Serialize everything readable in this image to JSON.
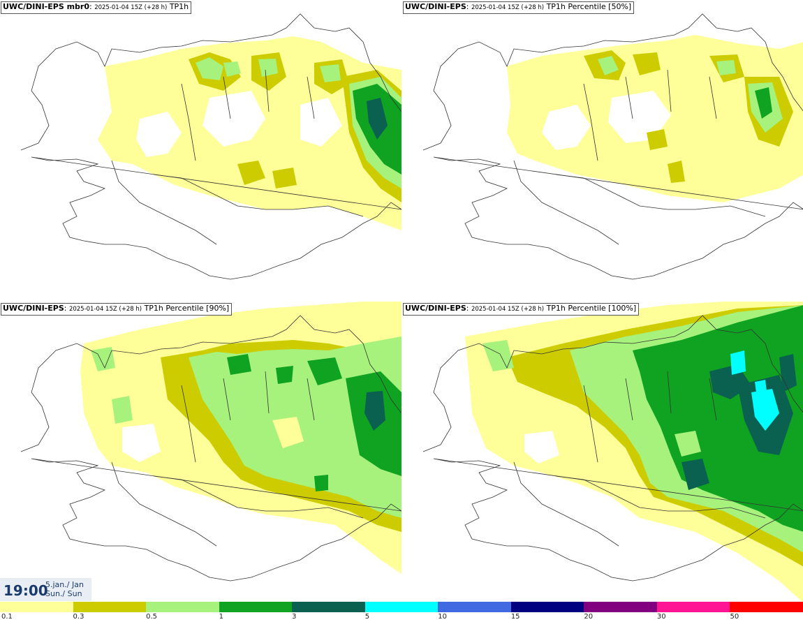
{
  "panels": [
    {
      "id": "mbr0",
      "model": "UWC/DINI-EPS mbr0",
      "run": "2025-01-04 15Z (+28 h)",
      "param": "TP1h"
    },
    {
      "id": "p50",
      "model": "UWC/DINI-EPS",
      "run": "2025-01-04 15Z (+28 h)",
      "param": "TP1h Percentile [50%]"
    },
    {
      "id": "p90",
      "model": "UWC/DINI-EPS",
      "run": "2025-01-04 15Z (+28 h)",
      "param": "TP1h Percentile [90%]"
    },
    {
      "id": "p100",
      "model": "UWC/DINI-EPS",
      "run": "2025-01-04 15Z (+28 h)",
      "param": "TP1h Percentile [100%]"
    }
  ],
  "valid": {
    "time": "19:00",
    "date_line1": "5.jan./ Jan",
    "date_line2": "Sun./ Sun"
  },
  "legend": {
    "colors": [
      "#ffff99",
      "#cccc00",
      "#a6f27c",
      "#0fa321",
      "#0b6150",
      "#00ffff",
      "#4169e1",
      "#000080",
      "#800080",
      "#ff1493",
      "#ff0000"
    ],
    "ticks": [
      "0.1",
      "0.3",
      "0.5",
      "1",
      "3",
      "5",
      "10",
      "15",
      "20",
      "30",
      "50"
    ]
  },
  "precip_colors": {
    "light": "#ffff99",
    "olive": "#cccc00",
    "lightgreen": "#a6f27c",
    "green": "#0fa321",
    "darkgreen": "#0b6150",
    "cyan": "#00ffff"
  }
}
